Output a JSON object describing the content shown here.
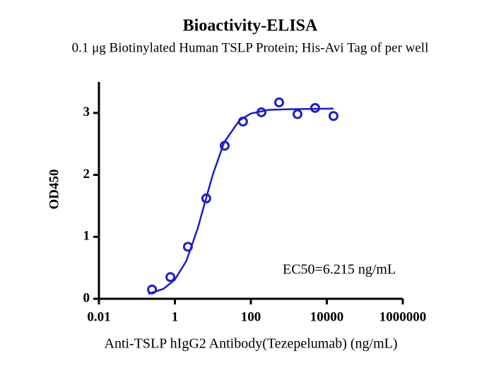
{
  "chart_data": {
    "type": "scatter",
    "title": "Bioactivity-ELISA",
    "subtitle": "0.1 μg Biotinylated Human TSLP Protein; His-Avi Tag of per well",
    "x_label": "Anti-TSLP hIgG2 Antibody(Tezepelumab) (ng/mL)",
    "y_label": "OD450",
    "annotation": "EC50=6.215 ng/mL",
    "x_scale": "log",
    "xlim": [
      0.01,
      1000000
    ],
    "xticks": [
      0.01,
      1,
      100,
      10000,
      1000000
    ],
    "ylim": [
      0,
      3.5
    ],
    "yticks": [
      0,
      1,
      2,
      3
    ],
    "series": [
      {
        "color": "#1c1cd2",
        "x": [
          0.25,
          0.76,
          2.2,
          6.7,
          20.5,
          62,
          190,
          555,
          1690,
          4930,
          15000
        ],
        "values": [
          0.15,
          0.35,
          0.84,
          1.62,
          2.47,
          2.86,
          3.01,
          3.17,
          2.98,
          3.08,
          2.95
        ]
      }
    ],
    "curve": {
      "color": "#1c1cd2",
      "x": [
        0.2,
        0.5,
        1,
        2,
        4,
        6.215,
        10,
        20,
        50,
        100,
        300,
        1000,
        15000
      ],
      "values": [
        0.08,
        0.16,
        0.31,
        0.61,
        1.14,
        1.56,
        2.01,
        2.53,
        2.88,
        2.99,
        3.05,
        3.06,
        3.07
      ]
    }
  }
}
